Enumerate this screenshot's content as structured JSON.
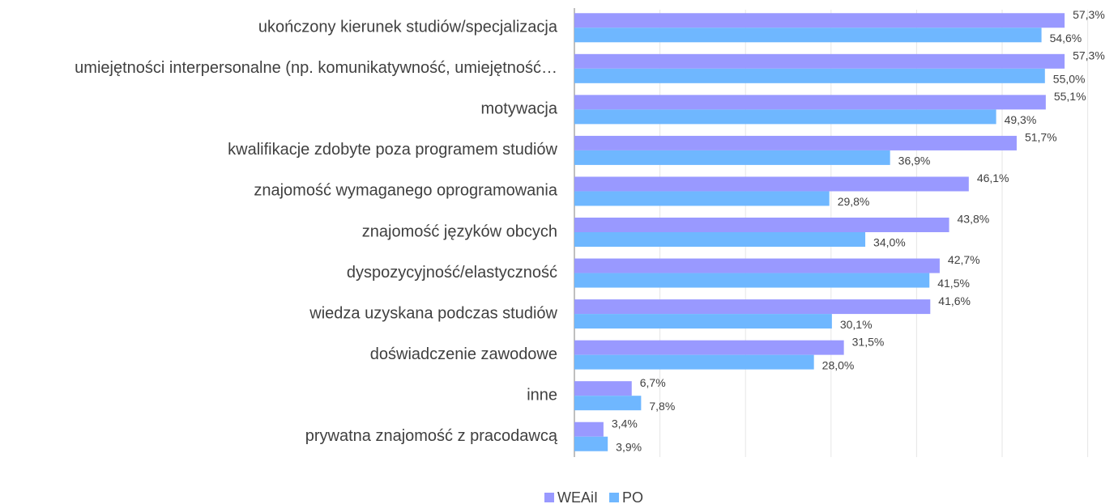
{
  "chart_data": {
    "type": "hbar",
    "categories": [
      "ukończony kierunek studiów/specjalizacja",
      "umiejętności interpersonalne (np. komunikatywność, umiejętność…",
      "motywacja",
      "kwalifikacje zdobyte poza programem studiów",
      "znajomość wymaganego oprogramowania",
      "znajomość języków obcych",
      "dyspozycyjność/elastyczność",
      "wiedza uzyskana podczas studiów",
      "doświadczenie zawodowe",
      "inne",
      "prywatna znajomość z pracodawcą"
    ],
    "series": [
      {
        "name": "WEAiI",
        "color": "#9999ff",
        "values": [
          57.3,
          57.3,
          55.1,
          51.7,
          46.1,
          43.8,
          42.7,
          41.6,
          31.5,
          6.7,
          3.4
        ],
        "value_labels": [
          "57,3%",
          "57,3%",
          "55,1%",
          "51,7%",
          "46,1%",
          "43,8%",
          "42,7%",
          "41,6%",
          "31,5%",
          "6,7%",
          "3,4%"
        ]
      },
      {
        "name": "PO",
        "color": "#6fb7ff",
        "values": [
          54.6,
          55.0,
          49.3,
          36.9,
          29.8,
          34.0,
          41.5,
          30.1,
          28.0,
          7.8,
          3.9
        ],
        "value_labels": [
          "54,6%",
          "55,0%",
          "49,3%",
          "36,9%",
          "29,8%",
          "34,0%",
          "41,5%",
          "30,1%",
          "28,0%",
          "7,8%",
          "3,9%"
        ]
      }
    ],
    "xlim": [
      0,
      60
    ],
    "xticks": [
      0,
      10,
      20,
      30,
      40,
      50,
      60
    ],
    "grid": true,
    "legend": "bottom"
  }
}
